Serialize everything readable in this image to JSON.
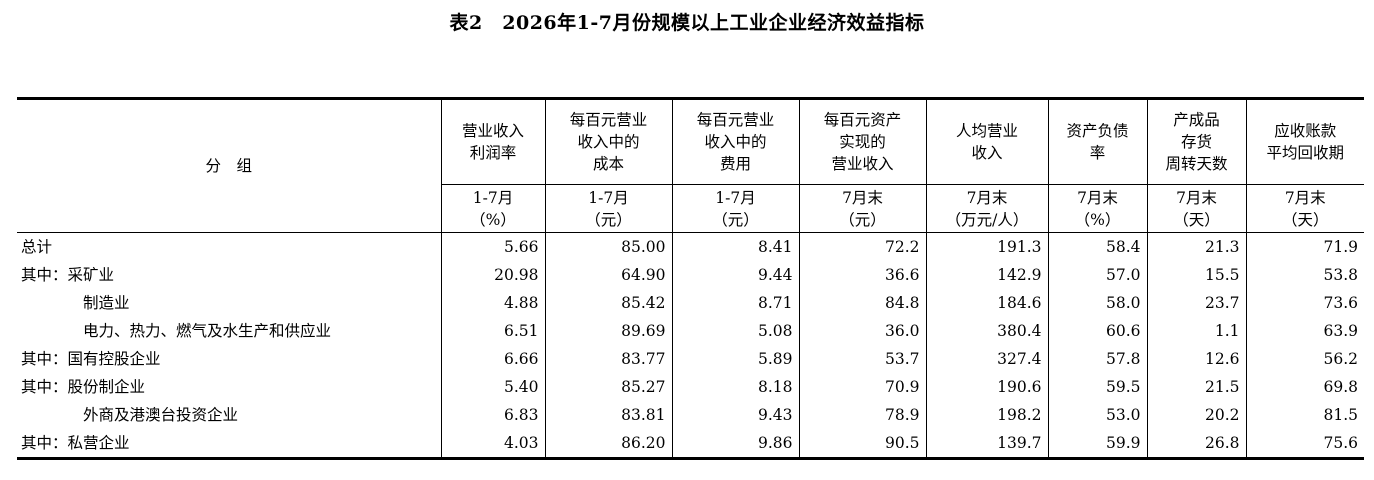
{
  "title": "表2　2026年1-7月份规模以上工业企业经济效益指标",
  "header": {
    "group_label": "分　组",
    "columns": [
      {
        "name_lines": [
          "营业收入",
          "利润率"
        ],
        "period": "1-7月",
        "unit": "（%）"
      },
      {
        "name_lines": [
          "每百元营业",
          "收入中的",
          "成本"
        ],
        "period": "1-7月",
        "unit": "（元）"
      },
      {
        "name_lines": [
          "每百元营业",
          "收入中的",
          "费用"
        ],
        "period": "1-7月",
        "unit": "（元）"
      },
      {
        "name_lines": [
          "每百元资产",
          "实现的",
          "营业收入"
        ],
        "period": "7月末",
        "unit": "（元）"
      },
      {
        "name_lines": [
          "人均营业",
          "收入"
        ],
        "period": "7月末",
        "unit": "（万元/人）"
      },
      {
        "name_lines": [
          "资产负债",
          "率"
        ],
        "period": "7月末",
        "unit": "（%）"
      },
      {
        "name_lines": [
          "产成品",
          "存货",
          "周转天数"
        ],
        "period": "7月末",
        "unit": "（天）"
      },
      {
        "name_lines": [
          "应收账款",
          "平均回收期"
        ],
        "period": "7月末",
        "unit": "（天）"
      }
    ]
  },
  "rows": [
    {
      "prefix": "总计",
      "label": "",
      "indent": false,
      "values": [
        "5.66",
        "85.00",
        "8.41",
        "72.2",
        "191.3",
        "58.4",
        "21.3",
        "71.9"
      ]
    },
    {
      "prefix": "其中：",
      "label": "采矿业",
      "indent": false,
      "values": [
        "20.98",
        "64.90",
        "9.44",
        "36.6",
        "142.9",
        "57.0",
        "15.5",
        "53.8"
      ]
    },
    {
      "prefix": "",
      "label": "制造业",
      "indent": true,
      "values": [
        "4.88",
        "85.42",
        "8.71",
        "84.8",
        "184.6",
        "58.0",
        "23.7",
        "73.6"
      ]
    },
    {
      "prefix": "",
      "label": "电力、热力、燃气及水生产和供应业",
      "indent": true,
      "values": [
        "6.51",
        "89.69",
        "5.08",
        "36.0",
        "380.4",
        "60.6",
        "1.1",
        "63.9"
      ]
    },
    {
      "prefix": "其中：",
      "label": "国有控股企业",
      "indent": false,
      "values": [
        "6.66",
        "83.77",
        "5.89",
        "53.7",
        "327.4",
        "57.8",
        "12.6",
        "56.2"
      ]
    },
    {
      "prefix": "其中：",
      "label": "股份制企业",
      "indent": false,
      "values": [
        "5.40",
        "85.27",
        "8.18",
        "70.9",
        "190.6",
        "59.5",
        "21.5",
        "69.8"
      ]
    },
    {
      "prefix": "",
      "label": "外商及港澳台投资企业",
      "indent": true,
      "values": [
        "6.83",
        "83.81",
        "9.43",
        "78.9",
        "198.2",
        "53.0",
        "20.2",
        "81.5"
      ]
    },
    {
      "prefix": "其中：",
      "label": "私营企业",
      "indent": false,
      "values": [
        "4.03",
        "86.20",
        "9.86",
        "90.5",
        "139.7",
        "59.9",
        "26.8",
        "75.6"
      ]
    }
  ]
}
